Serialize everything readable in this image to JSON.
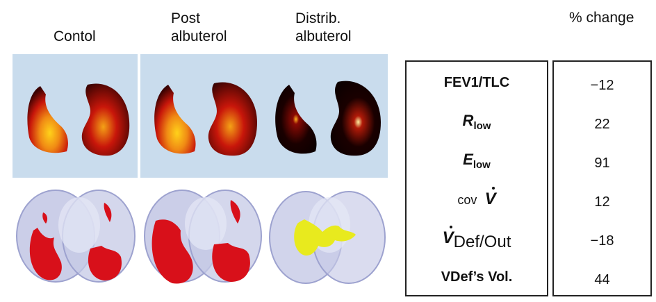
{
  "columns": [
    {
      "line1": "",
      "line2": "Contol"
    },
    {
      "line1": "Post",
      "line2": "albuterol"
    },
    {
      "line1": "Distrib.",
      "line2": "albuterol"
    }
  ],
  "table": {
    "header": "% change",
    "rows": [
      {
        "metric": "FEV1/TLC",
        "change": "−12"
      },
      {
        "metric_main": "R",
        "metric_sub": "low",
        "change": "22"
      },
      {
        "metric_main": "E",
        "metric_sub": "low",
        "change": "91"
      },
      {
        "metric_prefix": "cov",
        "metric_main": "V",
        "change": "12"
      },
      {
        "metric_main": "V",
        "metric_suffix": "Def/Out",
        "change": "−18"
      },
      {
        "metric": "VDef’s Vol.",
        "change": "44"
      }
    ]
  },
  "colors": {
    "panel_bg": "#c9dced",
    "ventilation_low": "#1a0000",
    "ventilation_mid": "#c8160a",
    "ventilation_high": "#ffd21a",
    "lung_shell": "#b9bde0",
    "defect_red": "#d8101a",
    "defect_yellow": "#e8ea1e"
  }
}
